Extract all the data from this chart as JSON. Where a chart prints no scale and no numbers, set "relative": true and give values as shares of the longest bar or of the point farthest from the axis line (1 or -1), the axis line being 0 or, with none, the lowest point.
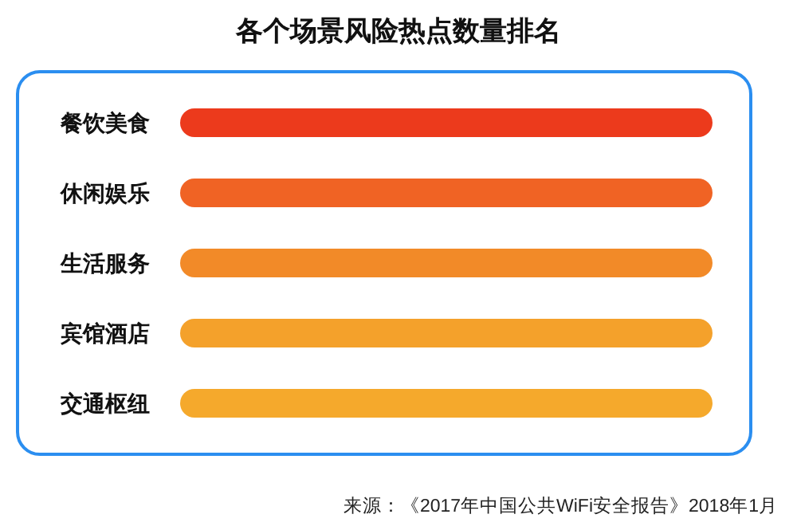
{
  "chart_data": {
    "type": "bar",
    "orientation": "horizontal",
    "relative": true,
    "title": "各个场景风险热点数量排名",
    "categories": [
      "餐饮美食",
      "休闲娱乐",
      "生活服务",
      "宾馆酒店",
      "交通枢纽"
    ],
    "values": [
      1,
      1,
      1,
      1,
      1
    ],
    "colors": [
      "#ec3a1c",
      "#f06324",
      "#f28a28",
      "#f4a12b",
      "#f5a92c"
    ],
    "annotations": [
      "来源：《2017年中国公共WiFi安全报告》2018年1月"
    ]
  }
}
